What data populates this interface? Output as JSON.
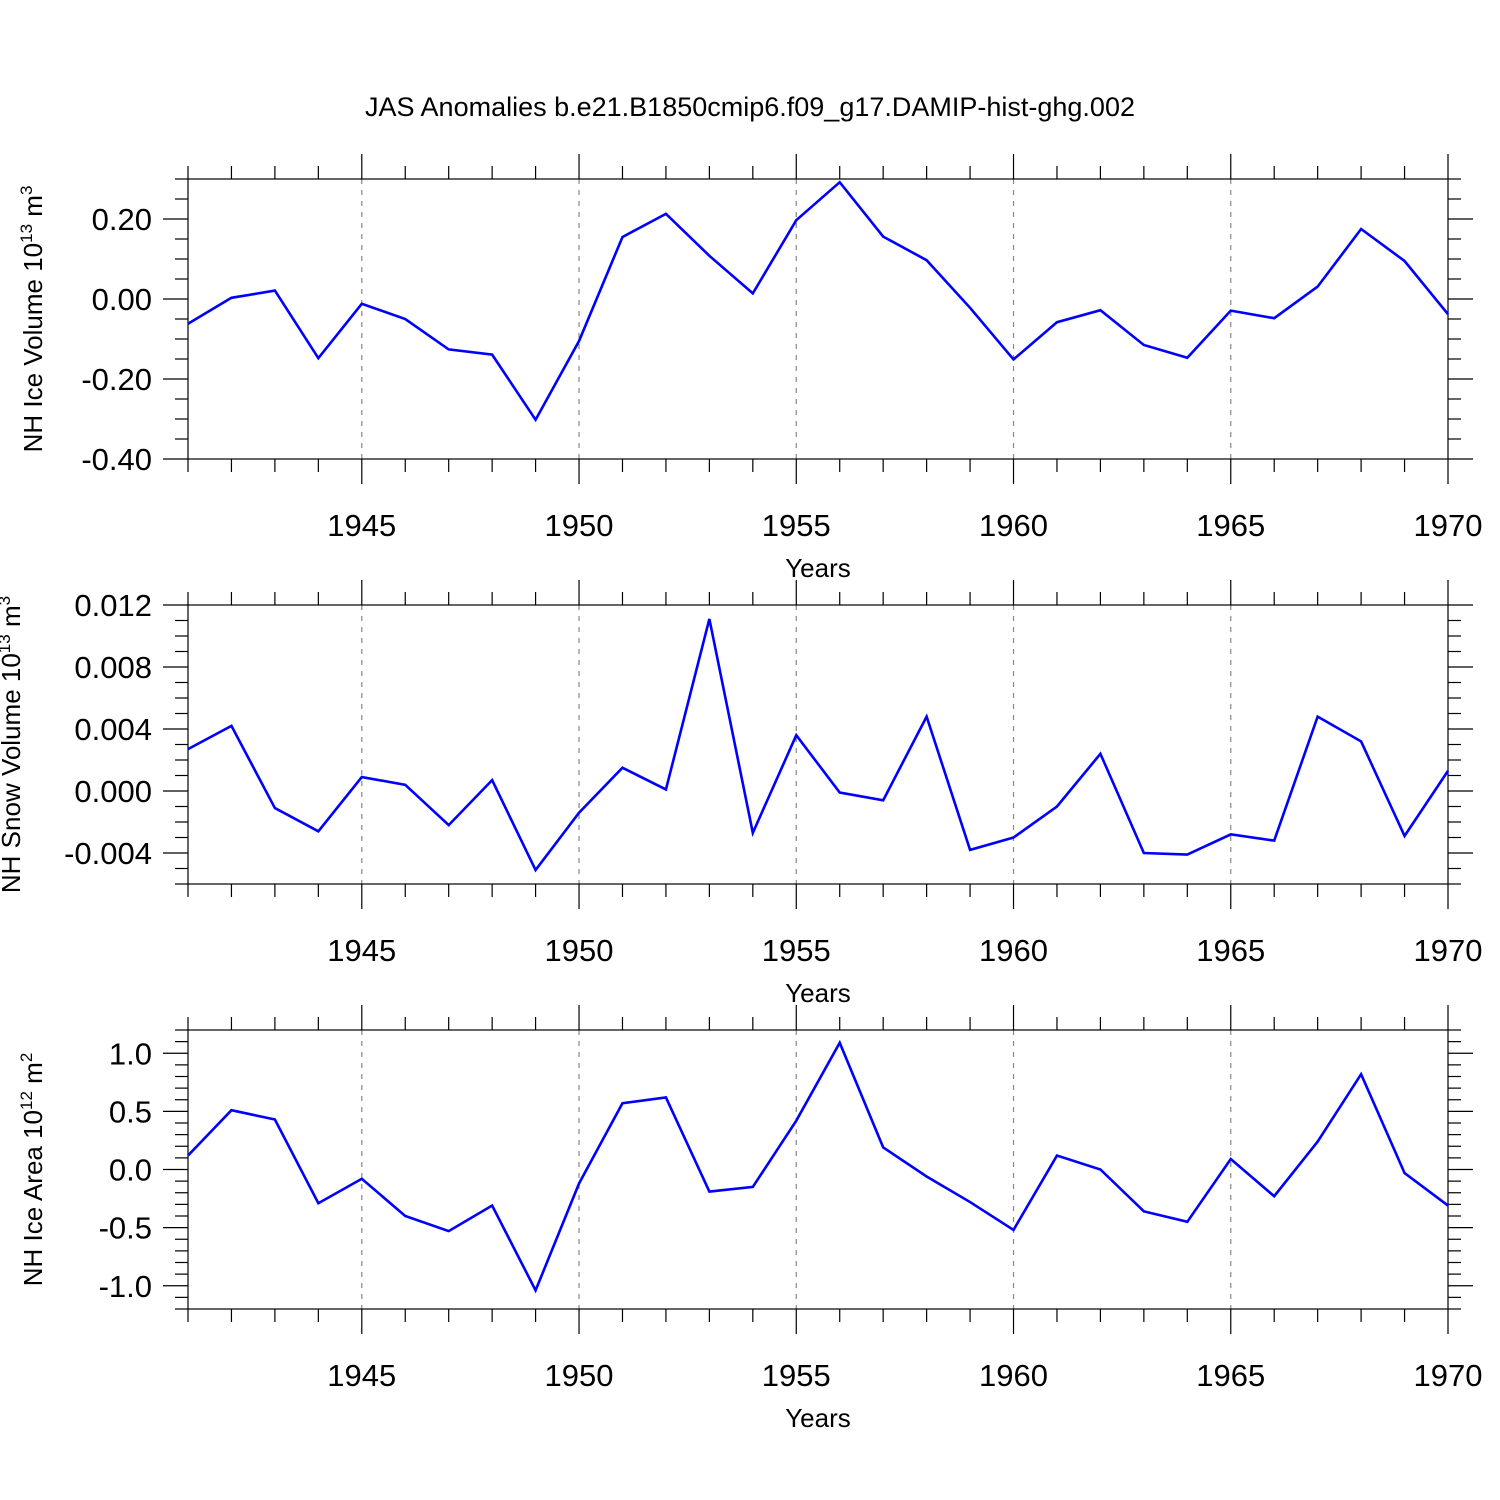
{
  "chart_data": [
    {
      "type": "line",
      "title": "JAS Anomalies b.e21.B1850cmip6.f09_g17.DAMIP-hist-ghg.002",
      "xlabel": "Years",
      "ylabel": "NH Ice Volume 10",
      "ylabel_exp": "13",
      "ylabel_unit": " m",
      "ylabel_unit_exp": "3",
      "xlim": [
        1941,
        1970
      ],
      "ylim": [
        -0.4,
        0.3
      ],
      "xticks": [
        "1945",
        "1950",
        "1955",
        "1960",
        "1965",
        "1970"
      ],
      "yticks": [
        "0.20",
        "0.00",
        "-0.20",
        "-0.40"
      ],
      "ytick_values": [
        0.2,
        0.0,
        -0.2,
        -0.4
      ],
      "series": [
        {
          "name": "NH Ice Volume",
          "color": "#0000ff",
          "x": [
            1941,
            1942,
            1943,
            1944,
            1945,
            1946,
            1947,
            1948,
            1949,
            1950,
            1951,
            1952,
            1953,
            1954,
            1955,
            1956,
            1957,
            1958,
            1959,
            1960,
            1961,
            1962,
            1963,
            1964,
            1965,
            1966,
            1967,
            1968,
            1969,
            1970
          ],
          "values": [
            -0.062,
            0.003,
            0.021,
            -0.148,
            -0.012,
            -0.05,
            -0.126,
            -0.139,
            -0.302,
            -0.105,
            0.155,
            0.213,
            0.108,
            0.014,
            0.197,
            0.292,
            0.156,
            0.097,
            -0.022,
            -0.151,
            -0.058,
            -0.028,
            -0.115,
            -0.147,
            -0.029,
            -0.048,
            0.031,
            0.175,
            0.095,
            -0.038
          ]
        }
      ]
    },
    {
      "type": "line",
      "xlabel": "Years",
      "ylabel": "NH Snow Volume 10",
      "ylabel_exp": "13",
      "ylabel_unit": " m",
      "ylabel_unit_exp": "3",
      "xlim": [
        1941,
        1970
      ],
      "ylim": [
        -0.006,
        0.012
      ],
      "xticks": [
        "1945",
        "1950",
        "1955",
        "1960",
        "1965",
        "1970"
      ],
      "yticks": [
        "0.012",
        "0.008",
        "0.004",
        "0.000",
        "-0.004"
      ],
      "ytick_values": [
        0.012,
        0.008,
        0.004,
        0.0,
        -0.004
      ],
      "series": [
        {
          "name": "NH Snow Volume",
          "color": "#0000ff",
          "x": [
            1941,
            1942,
            1943,
            1944,
            1945,
            1946,
            1947,
            1948,
            1949,
            1950,
            1951,
            1952,
            1953,
            1954,
            1955,
            1956,
            1957,
            1958,
            1959,
            1960,
            1961,
            1962,
            1963,
            1964,
            1965,
            1966,
            1967,
            1968,
            1969,
            1970
          ],
          "values": [
            0.0027,
            0.0042,
            -0.0011,
            -0.0026,
            0.0009,
            0.0004,
            -0.0022,
            0.0007,
            -0.0051,
            -0.0014,
            0.0015,
            0.0001,
            0.0111,
            -0.0027,
            0.0036,
            -0.0001,
            -0.0006,
            0.0048,
            -0.0038,
            -0.003,
            -0.001,
            0.0024,
            -0.004,
            -0.0041,
            -0.0028,
            -0.0032,
            0.0048,
            0.0032,
            -0.0029,
            0.0013
          ]
        }
      ]
    },
    {
      "type": "line",
      "xlabel": "Years",
      "ylabel": "NH Ice Area 10",
      "ylabel_exp": "12",
      "ylabel_unit": " m",
      "ylabel_unit_exp": "2",
      "xlim": [
        1941,
        1970
      ],
      "ylim": [
        -1.2,
        1.2
      ],
      "xticks": [
        "1945",
        "1950",
        "1955",
        "1960",
        "1965",
        "1970"
      ],
      "yticks": [
        "1.0",
        "0.5",
        "0.0",
        "-0.5",
        "-1.0"
      ],
      "ytick_values": [
        1.0,
        0.5,
        0.0,
        -0.5,
        -1.0
      ],
      "series": [
        {
          "name": "NH Ice Area",
          "color": "#0000ff",
          "x": [
            1941,
            1942,
            1943,
            1944,
            1945,
            1946,
            1947,
            1948,
            1949,
            1950,
            1951,
            1952,
            1953,
            1954,
            1955,
            1956,
            1957,
            1958,
            1959,
            1960,
            1961,
            1962,
            1963,
            1964,
            1965,
            1966,
            1967,
            1968,
            1969,
            1970
          ],
          "values": [
            0.12,
            0.51,
            0.43,
            -0.29,
            -0.08,
            -0.4,
            -0.53,
            -0.31,
            -1.04,
            -0.12,
            0.57,
            0.62,
            -0.19,
            -0.15,
            0.42,
            1.09,
            0.19,
            -0.06,
            -0.28,
            -0.52,
            0.12,
            0.0,
            -0.36,
            -0.45,
            0.09,
            -0.23,
            0.24,
            0.82,
            -0.03,
            -0.31
          ]
        }
      ]
    }
  ]
}
